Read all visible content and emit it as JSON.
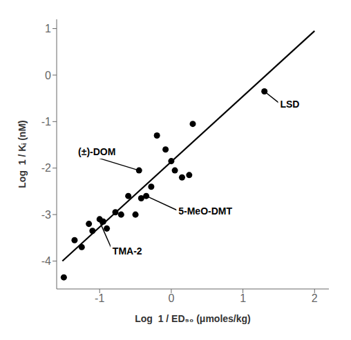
{
  "chart_data": {
    "type": "scatter",
    "series": [
      {
        "type": "scatter",
        "color": "#000000",
        "x": [
          -1.5,
          -1.35,
          -1.25,
          -1.15,
          -1.1,
          -1.0,
          -0.95,
          -0.9,
          -0.78,
          -0.7,
          -0.6,
          -0.5,
          -0.45,
          -0.42,
          -0.35,
          -0.28,
          -0.2,
          -0.08,
          0.0,
          0.05,
          0.15,
          0.25,
          0.3,
          1.3
        ],
        "values": [
          -4.35,
          -3.55,
          -3.7,
          -3.2,
          -3.35,
          -3.1,
          -3.15,
          -3.3,
          -2.95,
          -3.0,
          -2.6,
          -3.0,
          -2.05,
          -2.65,
          -2.6,
          -2.4,
          -1.3,
          -1.6,
          -1.85,
          -2.05,
          -2.2,
          -2.15,
          -1.05,
          -0.35
        ]
      },
      {
        "type": "line",
        "color": "#000000",
        "x": [
          -1.52,
          2.0
        ],
        "values": [
          -4.0,
          0.95
        ]
      }
    ],
    "xlim": [
      -1.6,
      2.2
    ],
    "ylim": [
      -4.6,
      1.2
    ],
    "xticks": [
      -1,
      0,
      1,
      2
    ],
    "yticks": [
      -4,
      -3,
      -2,
      -1,
      0,
      1
    ],
    "xlabel": "Log  1 / ED₅₀ (μmoles/kg)",
    "ylabel": "Log  1 / Kᵢ (nM)",
    "grid": false,
    "annotations": [
      {
        "text": "LSD",
        "xy": [
          1.3,
          -0.35
        ],
        "xytext": [
          1.52,
          -0.62
        ]
      },
      {
        "text": "(±)-DOM",
        "xy": [
          -0.45,
          -2.05
        ],
        "xytext": [
          -1.3,
          -1.65
        ]
      },
      {
        "text": "5-MeO-DMT",
        "xy": [
          -0.35,
          -2.6
        ],
        "xytext": [
          0.1,
          -2.92
        ]
      },
      {
        "text": "TMA-2",
        "xy": [
          -1.0,
          -3.15
        ],
        "xytext": [
          -0.82,
          -3.78
        ]
      }
    ]
  }
}
